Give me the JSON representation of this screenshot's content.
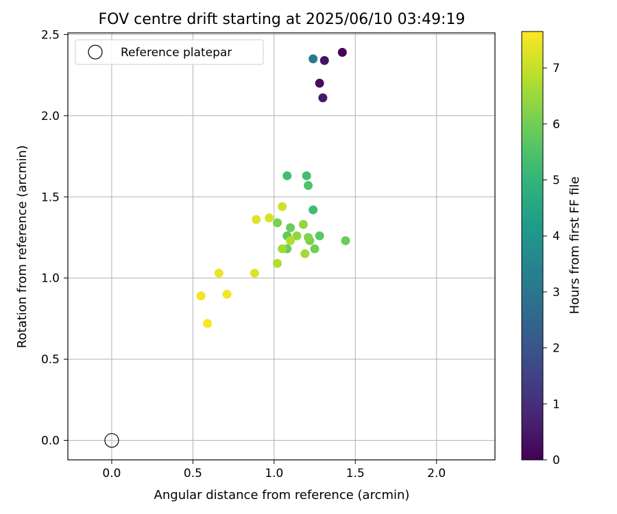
{
  "chart_data": {
    "type": "scatter",
    "title": "FOV centre drift starting at 2025/06/10 03:49:19",
    "xlabel": "Angular distance from reference (arcmin)",
    "ylabel": "Rotation from reference (arcmin)",
    "xlim": [
      -0.27,
      2.36
    ],
    "ylim": [
      -0.12,
      2.51
    ],
    "xticks": [
      0.0,
      0.5,
      1.0,
      1.5,
      2.0
    ],
    "xtick_labels": [
      "0.0",
      "0.5",
      "1.0",
      "1.5",
      "2.0"
    ],
    "yticks": [
      0.0,
      0.5,
      1.0,
      1.5,
      2.0,
      2.5
    ],
    "ytick_labels": [
      "0.0",
      "0.5",
      "1.0",
      "1.5",
      "2.0",
      "2.5"
    ],
    "grid": true,
    "legend": {
      "position": "top-left",
      "entries": [
        {
          "label": "Reference platepar",
          "marker": "open-circle"
        }
      ]
    },
    "reference_point": {
      "x": 0.0,
      "y": 0.0
    },
    "colorbar": {
      "label": "Hours from first FF file",
      "colormap": "viridis",
      "range": [
        0,
        7.65
      ],
      "ticks": [
        0,
        1,
        2,
        3,
        4,
        5,
        6,
        7
      ],
      "tick_labels": [
        "0",
        "1",
        "2",
        "3",
        "4",
        "5",
        "6",
        "7"
      ]
    },
    "points": [
      {
        "x": 1.42,
        "y": 2.39,
        "hours": 0.05
      },
      {
        "x": 1.31,
        "y": 2.34,
        "hours": 0.4
      },
      {
        "x": 1.28,
        "y": 2.2,
        "hours": 0.25
      },
      {
        "x": 1.3,
        "y": 2.11,
        "hours": 0.5
      },
      {
        "x": 1.24,
        "y": 2.35,
        "hours": 3.1
      },
      {
        "x": 1.08,
        "y": 1.63,
        "hours": 5.3
      },
      {
        "x": 1.2,
        "y": 1.63,
        "hours": 5.3
      },
      {
        "x": 1.21,
        "y": 1.57,
        "hours": 5.5
      },
      {
        "x": 1.24,
        "y": 1.42,
        "hours": 5.3
      },
      {
        "x": 1.44,
        "y": 1.23,
        "hours": 5.9
      },
      {
        "x": 1.28,
        "y": 1.26,
        "hours": 5.7
      },
      {
        "x": 1.1,
        "y": 1.31,
        "hours": 5.9
      },
      {
        "x": 1.08,
        "y": 1.26,
        "hours": 5.8
      },
      {
        "x": 1.08,
        "y": 1.18,
        "hours": 5.9
      },
      {
        "x": 1.02,
        "y": 1.34,
        "hours": 6.1
      },
      {
        "x": 1.25,
        "y": 1.18,
        "hours": 6.0
      },
      {
        "x": 1.22,
        "y": 1.23,
        "hours": 6.1
      },
      {
        "x": 1.21,
        "y": 1.25,
        "hours": 6.2
      },
      {
        "x": 1.18,
        "y": 1.33,
        "hours": 6.4
      },
      {
        "x": 1.14,
        "y": 1.26,
        "hours": 6.4
      },
      {
        "x": 1.19,
        "y": 1.15,
        "hours": 6.6
      },
      {
        "x": 1.05,
        "y": 1.18,
        "hours": 6.6
      },
      {
        "x": 1.1,
        "y": 1.23,
        "hours": 6.8
      },
      {
        "x": 1.02,
        "y": 1.09,
        "hours": 6.8
      },
      {
        "x": 1.05,
        "y": 1.44,
        "hours": 7.1
      },
      {
        "x": 0.97,
        "y": 1.37,
        "hours": 7.2
      },
      {
        "x": 0.89,
        "y": 1.36,
        "hours": 7.3
      },
      {
        "x": 0.88,
        "y": 1.03,
        "hours": 7.3
      },
      {
        "x": 0.66,
        "y": 1.03,
        "hours": 7.4
      },
      {
        "x": 0.55,
        "y": 0.89,
        "hours": 7.5
      },
      {
        "x": 0.71,
        "y": 0.9,
        "hours": 7.5
      },
      {
        "x": 0.59,
        "y": 0.72,
        "hours": 7.6
      }
    ]
  }
}
